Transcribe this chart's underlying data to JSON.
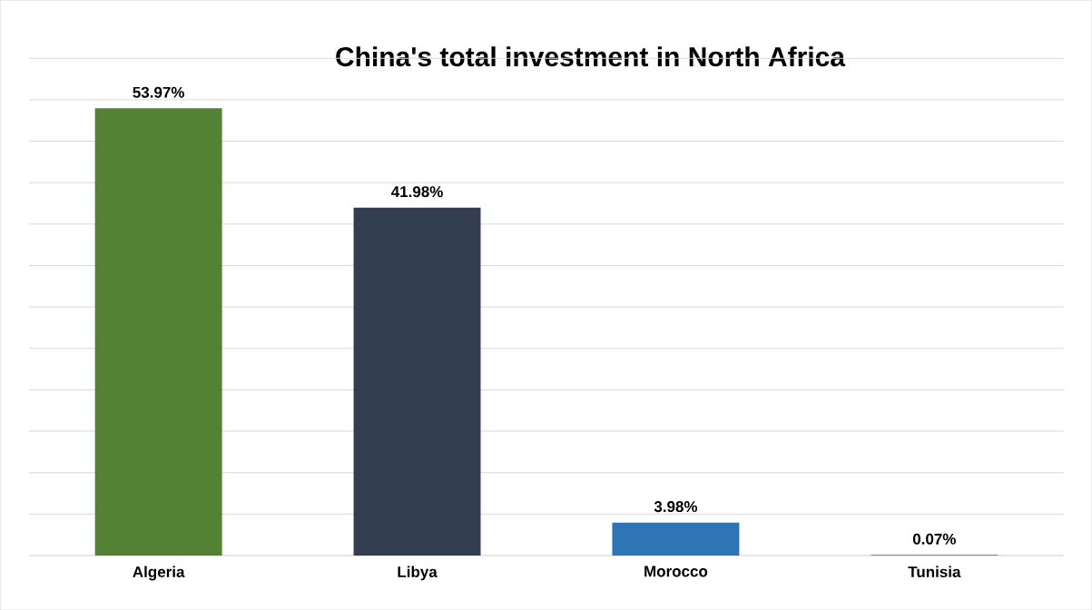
{
  "chart_data": {
    "type": "bar",
    "title": "China's total investment in North Africa",
    "categories": [
      "Algeria",
      "Libya",
      "Morocco",
      "Tunisia"
    ],
    "values": [
      53.97,
      41.98,
      3.98,
      0.07
    ],
    "colors": [
      "#548235",
      "#333f50",
      "#2e75b6",
      "#2e75b6"
    ],
    "value_labels": [
      "53.97%",
      "41.98%",
      "3.98%",
      "0.07%"
    ],
    "grid": "y",
    "tick_labels": "x"
  }
}
